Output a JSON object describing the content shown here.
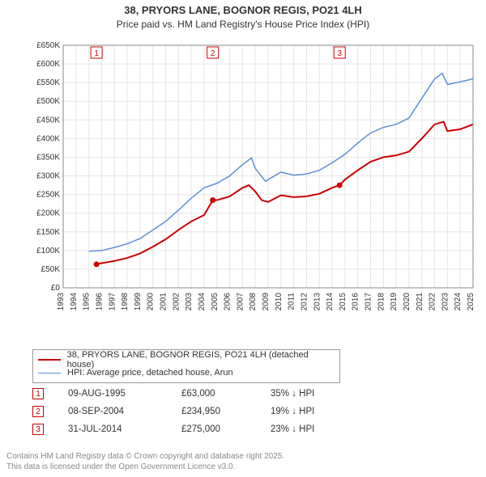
{
  "title": {
    "line1": "38, PRYORS LANE, BOGNOR REGIS, PO21 4LH",
    "line2": "Price paid vs. HM Land Registry's House Price Index (HPI)",
    "fontsize_main": 13,
    "fontsize_sub": 12,
    "color": "#333333"
  },
  "chart": {
    "type": "line",
    "background_color": "#ffffff",
    "plot_border_color": "#888888",
    "grid_color": "#e6e6e6",
    "x": {
      "min": 1993,
      "max": 2025,
      "tick_step": 1,
      "labels": [
        "1993",
        "1994",
        "1995",
        "1996",
        "1997",
        "1998",
        "1999",
        "2000",
        "2001",
        "2002",
        "2003",
        "2004",
        "2005",
        "2006",
        "2007",
        "2008",
        "2009",
        "2010",
        "2011",
        "2012",
        "2013",
        "2014",
        "2015",
        "2016",
        "2017",
        "2018",
        "2019",
        "2020",
        "2021",
        "2022",
        "2023",
        "2024",
        "2025"
      ],
      "label_rotation": -90,
      "label_fontsize": 10
    },
    "y": {
      "min": 0,
      "max": 650000,
      "tick_step": 50000,
      "labels": [
        "£0",
        "£50K",
        "£100K",
        "£150K",
        "£200K",
        "£250K",
        "£300K",
        "£350K",
        "£400K",
        "£450K",
        "£500K",
        "£550K",
        "£600K",
        "£650K"
      ],
      "label_fontsize": 10
    },
    "series": [
      {
        "name": "price_paid",
        "legend": "38, PRYORS LANE, BOGNOR REGIS, PO21 4LH (detached house)",
        "color": "#cc0000",
        "line_width": 2,
        "data": [
          [
            1995.6,
            63000
          ],
          [
            1996,
            66000
          ],
          [
            1997,
            72000
          ],
          [
            1998,
            80000
          ],
          [
            1999,
            92000
          ],
          [
            2000,
            110000
          ],
          [
            2001,
            130000
          ],
          [
            2002,
            155000
          ],
          [
            2003,
            178000
          ],
          [
            2004,
            195000
          ],
          [
            2004.68,
            234950
          ],
          [
            2005,
            235000
          ],
          [
            2006,
            245000
          ],
          [
            2007,
            268000
          ],
          [
            2007.5,
            275000
          ],
          [
            2008,
            258000
          ],
          [
            2008.5,
            235000
          ],
          [
            2009,
            230000
          ],
          [
            2010,
            248000
          ],
          [
            2011,
            243000
          ],
          [
            2012,
            245000
          ],
          [
            2013,
            252000
          ],
          [
            2014,
            268000
          ],
          [
            2014.58,
            275000
          ],
          [
            2015,
            290000
          ],
          [
            2016,
            315000
          ],
          [
            2017,
            338000
          ],
          [
            2018,
            350000
          ],
          [
            2019,
            355000
          ],
          [
            2020,
            365000
          ],
          [
            2021,
            400000
          ],
          [
            2022,
            438000
          ],
          [
            2022.7,
            445000
          ],
          [
            2023,
            420000
          ],
          [
            2024,
            425000
          ],
          [
            2025,
            438000
          ]
        ]
      },
      {
        "name": "hpi",
        "legend": "HPI: Average price, detached house, Arun",
        "color": "#5b8fd6",
        "line_width": 1.5,
        "data": [
          [
            1995,
            98000
          ],
          [
            1996,
            100000
          ],
          [
            1997,
            108000
          ],
          [
            1998,
            118000
          ],
          [
            1999,
            132000
          ],
          [
            2000,
            155000
          ],
          [
            2001,
            178000
          ],
          [
            2002,
            208000
          ],
          [
            2003,
            240000
          ],
          [
            2004,
            268000
          ],
          [
            2005,
            280000
          ],
          [
            2006,
            300000
          ],
          [
            2007,
            330000
          ],
          [
            2007.7,
            348000
          ],
          [
            2008,
            320000
          ],
          [
            2008.8,
            285000
          ],
          [
            2009,
            290000
          ],
          [
            2010,
            310000
          ],
          [
            2011,
            302000
          ],
          [
            2012,
            305000
          ],
          [
            2013,
            315000
          ],
          [
            2014,
            335000
          ],
          [
            2015,
            358000
          ],
          [
            2016,
            388000
          ],
          [
            2017,
            415000
          ],
          [
            2018,
            430000
          ],
          [
            2019,
            438000
          ],
          [
            2020,
            455000
          ],
          [
            2021,
            508000
          ],
          [
            2022,
            560000
          ],
          [
            2022.6,
            575000
          ],
          [
            2023,
            545000
          ],
          [
            2024,
            552000
          ],
          [
            2025,
            560000
          ]
        ]
      }
    ],
    "markers": [
      {
        "n": "1",
        "x": 1995.6,
        "y": 63000,
        "box_color": "#cc0000"
      },
      {
        "n": "2",
        "x": 2004.68,
        "y": 234950,
        "box_color": "#cc0000"
      },
      {
        "n": "3",
        "x": 2014.58,
        "y": 275000,
        "box_color": "#cc0000"
      }
    ]
  },
  "legend": {
    "border_color": "#999999",
    "items": [
      {
        "color": "#cc0000",
        "width": 2,
        "label": "38, PRYORS LANE, BOGNOR REGIS, PO21 4LH (detached house)"
      },
      {
        "color": "#5b8fd6",
        "width": 1.5,
        "label": "HPI: Average price, detached house, Arun"
      }
    ]
  },
  "transactions": [
    {
      "n": "1",
      "date": "09-AUG-1995",
      "price": "£63,000",
      "delta": "35% ↓ HPI"
    },
    {
      "n": "2",
      "date": "08-SEP-2004",
      "price": "£234,950",
      "delta": "19% ↓ HPI"
    },
    {
      "n": "3",
      "date": "31-JUL-2014",
      "price": "£275,000",
      "delta": "23% ↓ HPI"
    }
  ],
  "attribution": {
    "line1": "Contains HM Land Registry data © Crown copyright and database right 2025.",
    "line2": "This data is licensed under the Open Government Licence v3.0.",
    "color": "#888888",
    "fontsize": 10
  }
}
